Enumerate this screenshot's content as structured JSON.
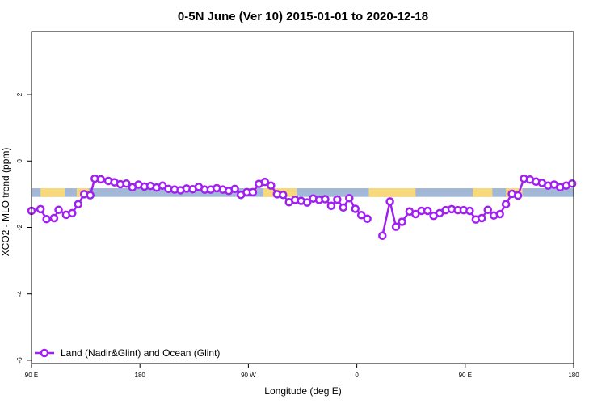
{
  "chart_data": {
    "type": "line",
    "title": "0-5N June (Ver 10)   2015-01-01 to 2020-12-18",
    "xlabel": "Longitude (deg E)",
    "ylabel": "XCO2 - MLO trend (ppm)",
    "xlim": [
      0,
      360
    ],
    "ylim": [
      -6.1,
      3.9
    ],
    "xticks": [
      {
        "value": 0,
        "label": "90 E"
      },
      {
        "value": 72,
        "label": "180"
      },
      {
        "value": 144,
        "label": "90 W"
      },
      {
        "value": 216,
        "label": "0"
      },
      {
        "value": 288,
        "label": "90 E"
      },
      {
        "value": 360,
        "label": "180"
      }
    ],
    "yticks": [
      {
        "value": 2,
        "label": "2"
      },
      {
        "value": 0,
        "label": "0"
      },
      {
        "value": -2,
        "label": "-2"
      },
      {
        "value": -4,
        "label": "-4"
      },
      {
        "value": -6,
        "label": "-6"
      }
    ],
    "band": {
      "y_range": [
        -1.08,
        -0.82
      ],
      "ocean_color": "#a3b8d6",
      "land_color": "#f7d87a",
      "land_segments": [
        [
          6,
          22
        ],
        [
          30,
          38
        ],
        [
          154,
          176
        ],
        [
          224,
          255
        ],
        [
          293,
          306
        ],
        [
          315,
          326
        ]
      ]
    },
    "legend": {
      "label": "Land (Nadir&Glint) and Ocean (Glint)",
      "position": "bottom-left"
    },
    "series": [
      {
        "name": "Land (Nadir&Glint) and Ocean (Glint)",
        "color": "#a020f0",
        "segments": [
          {
            "x": [
              0,
              6,
              10,
              15,
              18,
              23,
              27,
              31,
              35,
              39,
              42,
              46,
              51,
              55,
              59,
              63,
              67,
              71,
              75,
              79,
              83,
              87,
              91,
              95,
              99,
              103,
              107,
              111,
              115,
              119,
              123,
              127,
              131,
              135,
              139,
              143,
              147,
              151,
              155,
              159,
              163,
              167,
              171,
              175,
              179,
              183,
              187,
              191,
              195,
              199,
              203,
              207,
              211,
              215,
              219,
              223
            ],
            "y": [
              -1.5,
              -1.45,
              -1.75,
              -1.72,
              -1.47,
              -1.62,
              -1.57,
              -1.3,
              -1.0,
              -1.03,
              -0.53,
              -0.55,
              -0.6,
              -0.64,
              -0.7,
              -0.68,
              -0.79,
              -0.71,
              -0.77,
              -0.75,
              -0.8,
              -0.74,
              -0.84,
              -0.86,
              -0.88,
              -0.83,
              -0.85,
              -0.78,
              -0.86,
              -0.86,
              -0.82,
              -0.86,
              -0.9,
              -0.84,
              -1.02,
              -0.94,
              -0.94,
              -0.69,
              -0.63,
              -0.74,
              -1.0,
              -1.02,
              -1.24,
              -1.17,
              -1.2,
              -1.25,
              -1.13,
              -1.17,
              -1.15,
              -1.35,
              -1.16,
              -1.4,
              -1.12,
              -1.44,
              -1.63,
              -1.74
            ]
          },
          {
            "x": [
              233,
              238,
              242,
              246,
              251,
              255,
              259,
              263,
              267,
              271,
              275,
              279,
              283,
              287,
              291,
              295,
              299,
              303,
              307,
              311,
              315,
              319,
              323,
              327,
              331,
              335,
              339,
              343,
              347,
              351,
              355,
              359
            ],
            "y": [
              -2.25,
              -1.22,
              -1.98,
              -1.83,
              -1.52,
              -1.6,
              -1.5,
              -1.5,
              -1.65,
              -1.57,
              -1.48,
              -1.45,
              -1.48,
              -1.48,
              -1.5,
              -1.76,
              -1.72,
              -1.47,
              -1.64,
              -1.6,
              -1.3,
              -0.99,
              -1.04,
              -0.53,
              -0.56,
              -0.62,
              -0.66,
              -0.74,
              -0.71,
              -0.79,
              -0.74,
              -0.68
            ]
          }
        ]
      }
    ]
  }
}
